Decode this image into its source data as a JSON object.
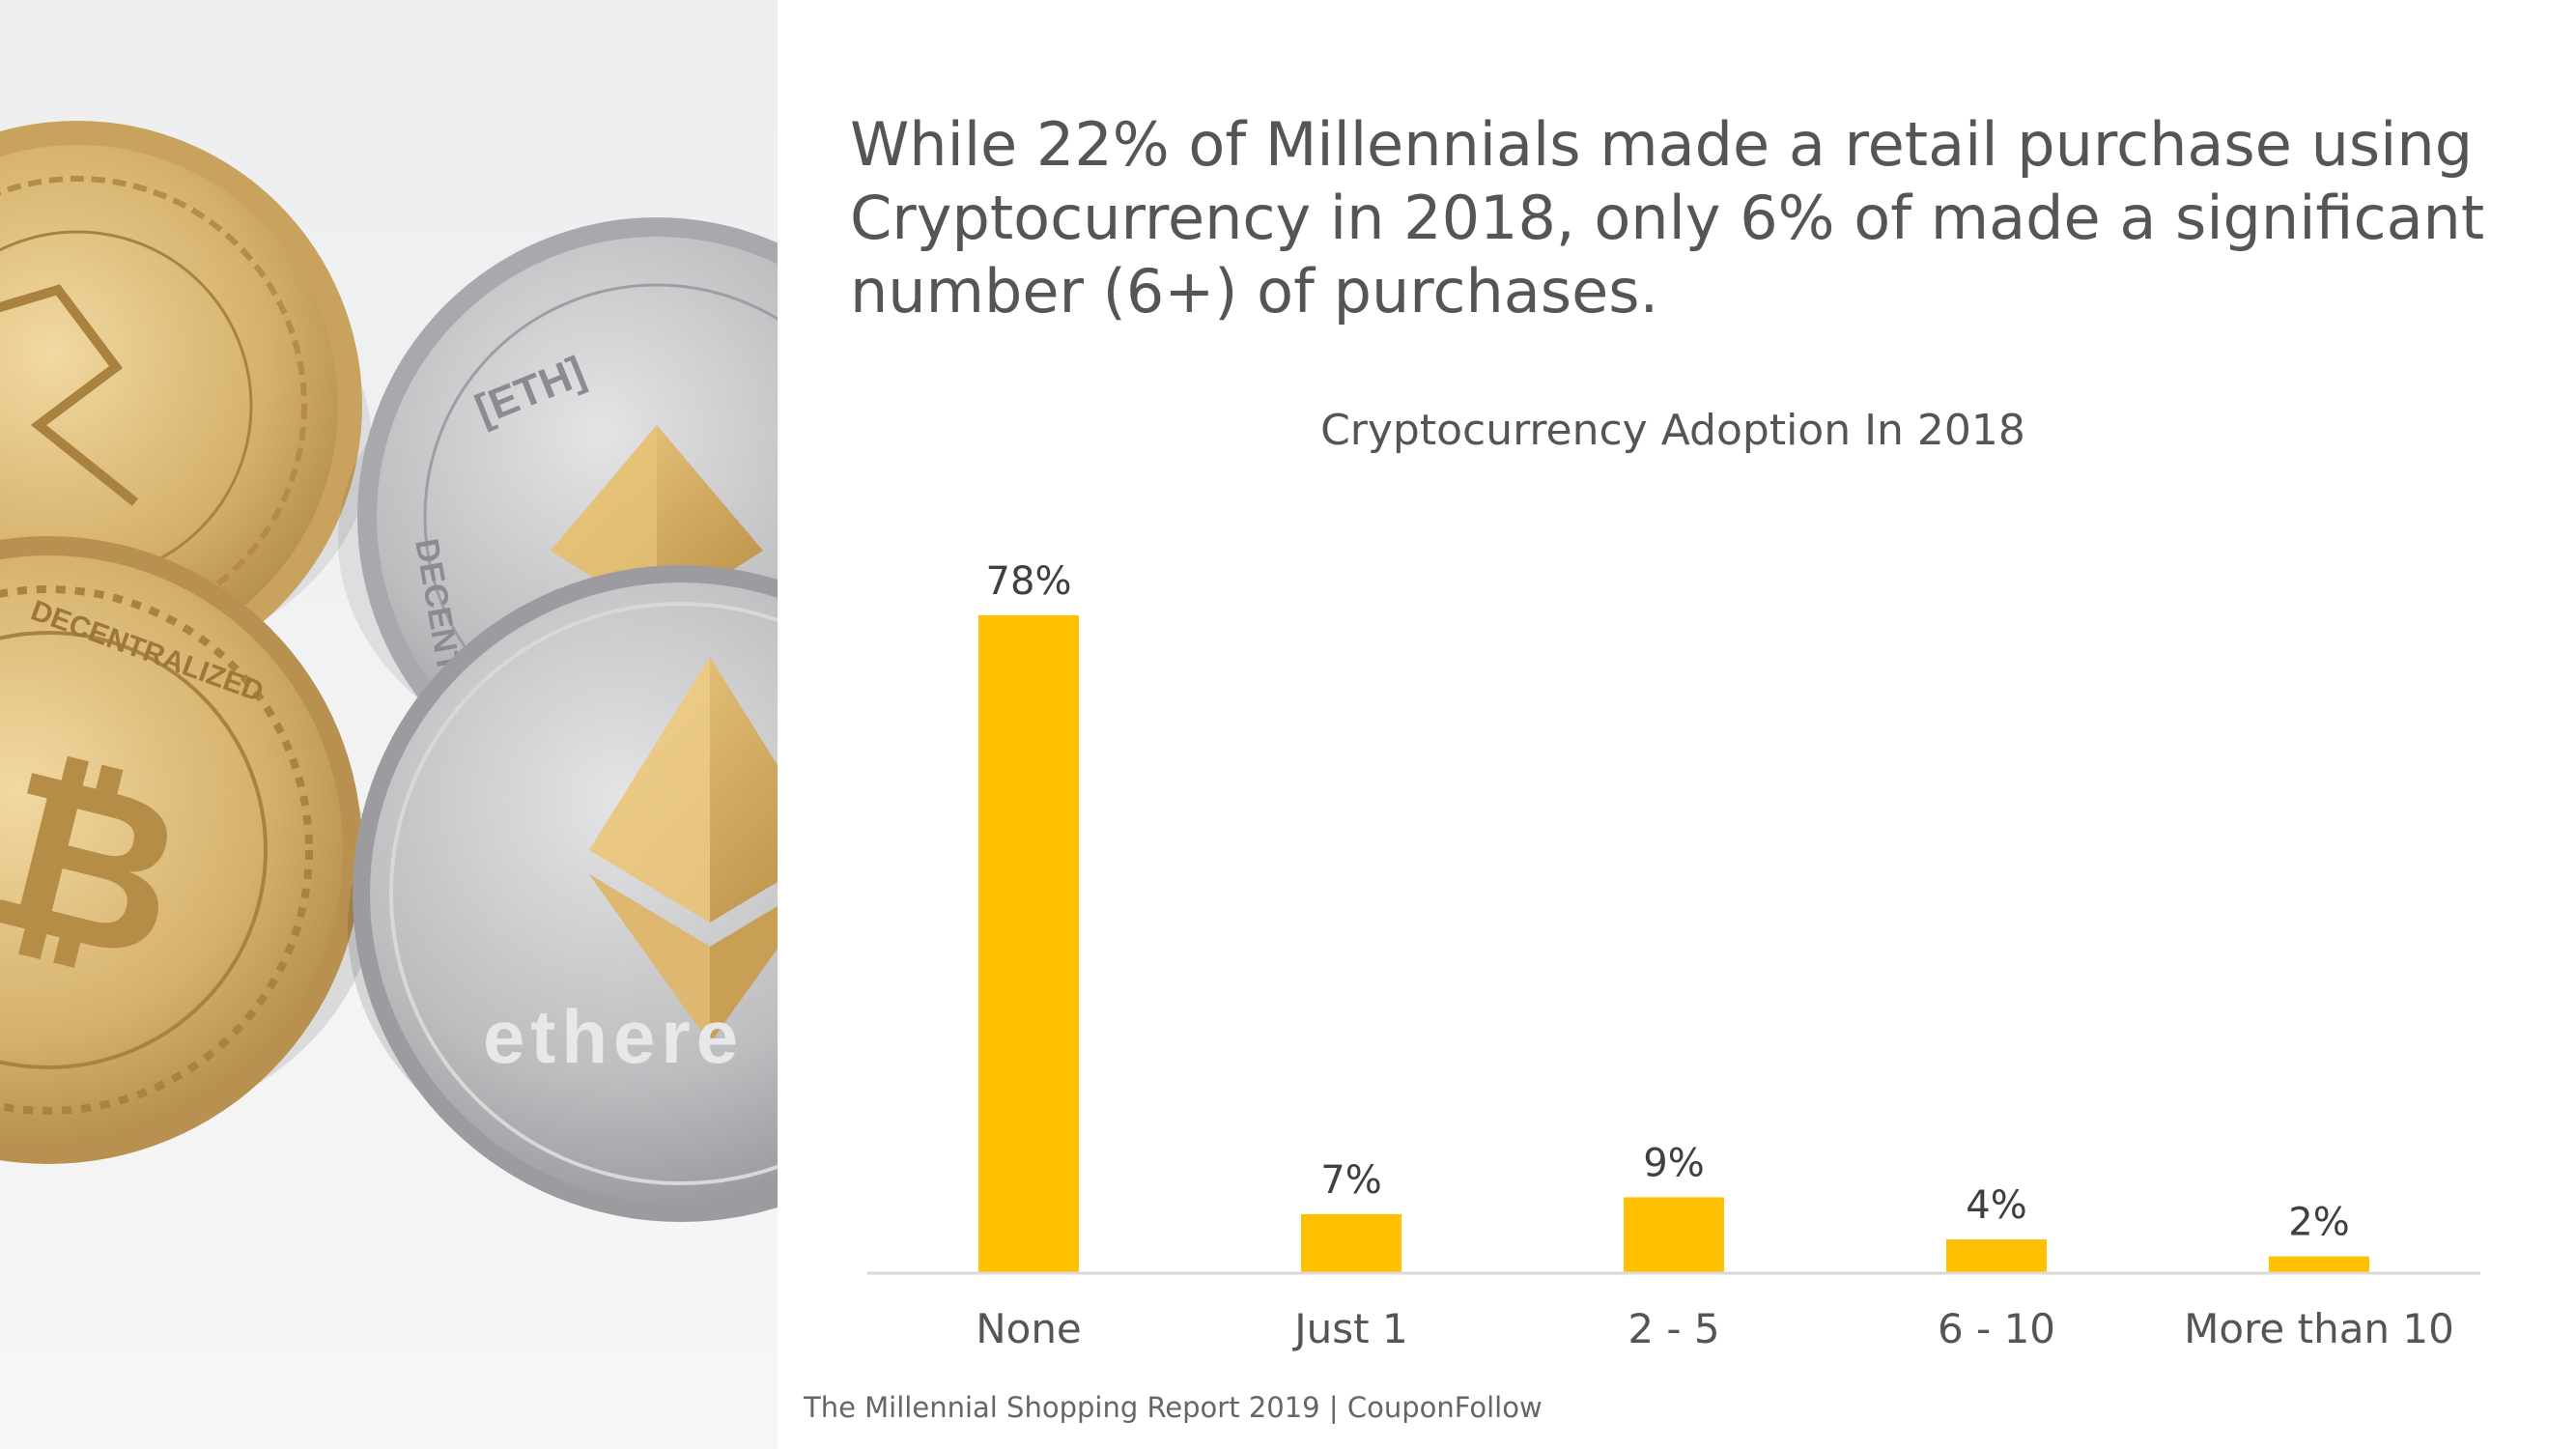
{
  "headline": "While 22% of Millennials made a retail purchase using Cryptocurrency in 2018, only 6% of made a significant number (6+) of purchases.",
  "source": "The Millennial Shopping Report 2019 | CouponFollow",
  "photo": {
    "description_name": "crypto-coins-photo",
    "coin_texts": [
      "[ETH]",
      "DECENTRA",
      "ethere",
      "DECENTRALIZED"
    ]
  },
  "colors": {
    "bar": "#FFC000",
    "text": "#555555",
    "axis": "#D9D9D9",
    "gold": "#D4AF6A",
    "silver": "#BFBFC2"
  },
  "chart_data": {
    "type": "bar",
    "title": "Cryptocurrency Adoption In 2018",
    "categories": [
      "None",
      "Just 1",
      "2 - 5",
      "6 - 10",
      "More than 10"
    ],
    "values": [
      78,
      7,
      9,
      4,
      2
    ],
    "labels": [
      "78%",
      "7%",
      "9%",
      "4%",
      "2%"
    ],
    "ylim": [
      0,
      78
    ],
    "grid": false,
    "legend": "none"
  }
}
